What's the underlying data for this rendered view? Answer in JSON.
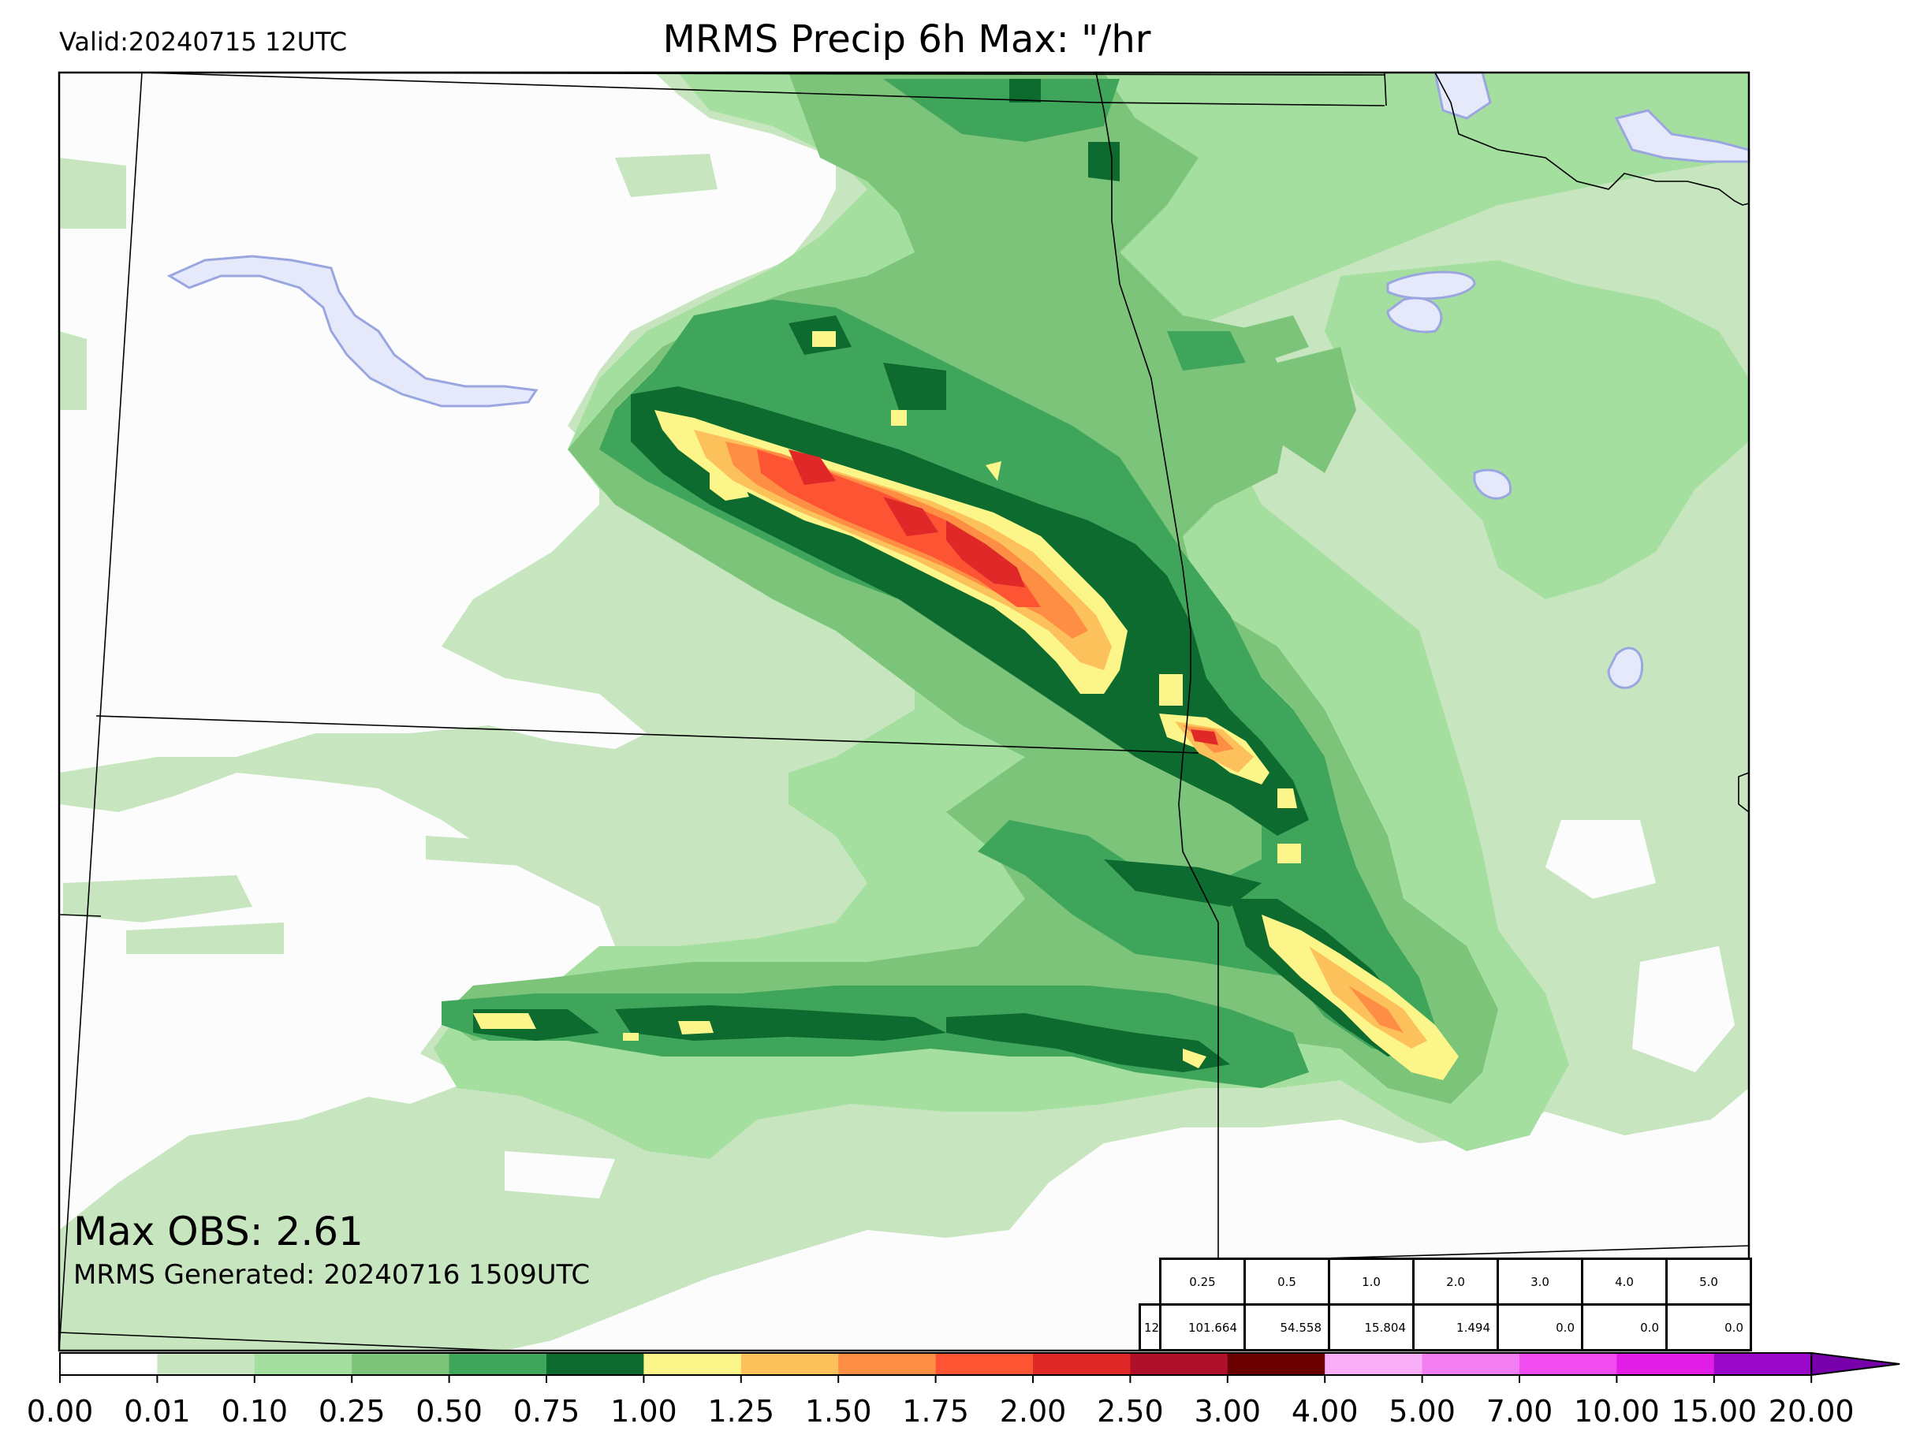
{
  "header": {
    "valid": "Valid:20240715 12UTC",
    "title": "MRMS Precip 6h Max: \"/hr"
  },
  "footer": {
    "max_obs": "Max OBS: 2.61",
    "generated": "MRMS Generated: 20240716 1509UTC"
  },
  "stats_table": {
    "thresholds": [
      "0.25",
      "0.5",
      "1.0",
      "2.0",
      "3.0",
      "4.0",
      "5.0"
    ],
    "row_label": "12",
    "values": [
      "101.664",
      "54.558",
      "15.804",
      "1.494",
      "0.0",
      "0.0",
      "0.0"
    ]
  },
  "colorbar": {
    "ticks": [
      "0.00",
      "0.01",
      "0.10",
      "0.25",
      "0.50",
      "0.75",
      "1.00",
      "1.25",
      "1.50",
      "1.75",
      "2.00",
      "2.50",
      "3.00",
      "4.00",
      "5.00",
      "7.00",
      "10.00",
      "15.00",
      "20.00"
    ],
    "colors": [
      "#ffffff",
      "#c7e6c0",
      "#a5df9f",
      "#7bc47a",
      "#3fa55a",
      "#0e6b2f",
      "#fbf58a",
      "#fdc15c",
      "#fd8e43",
      "#fd5533",
      "#e02828",
      "#b0102a",
      "#6b0000",
      "#f7aef7",
      "#f27ef2",
      "#f04cf0",
      "#e21de6",
      "#9a09c9"
    ],
    "extend_color": "#7700aa"
  },
  "map_colors": {
    "background": "#fcfcfc",
    "water_fill": "#e5e9fa",
    "water_line": "#9aa6e0"
  }
}
